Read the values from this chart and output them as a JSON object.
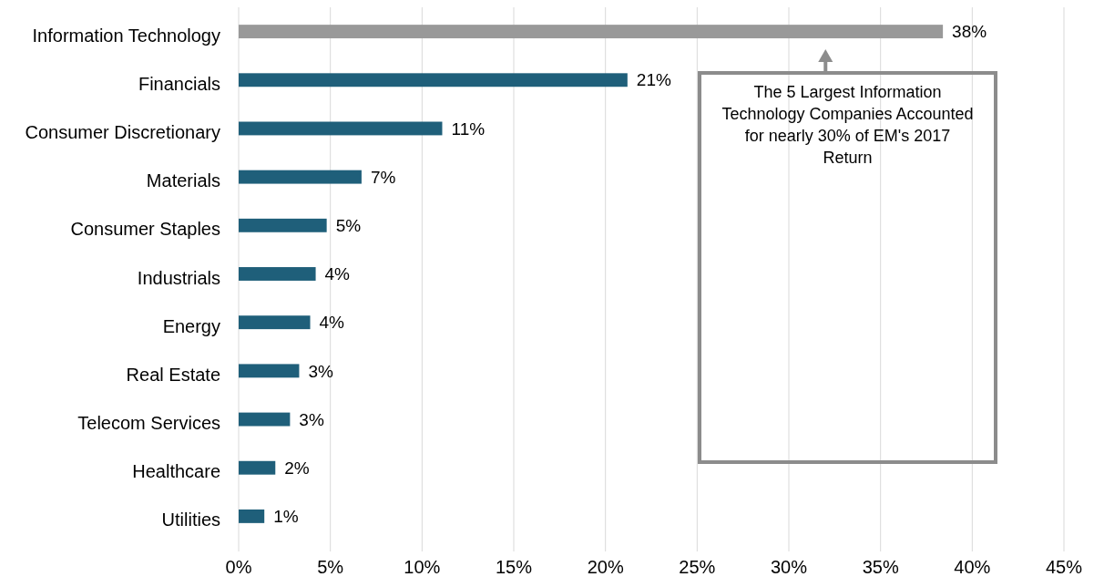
{
  "chart_data": {
    "type": "bar",
    "orientation": "horizontal",
    "categories": [
      "Information Technology",
      "Financials",
      "Consumer Discretionary",
      "Materials",
      "Consumer Staples",
      "Industrials",
      "Energy",
      "Real Estate",
      "Telecom Services",
      "Healthcare",
      "Utilities"
    ],
    "values": [
      38.4,
      21.2,
      11.1,
      6.7,
      4.8,
      4.2,
      3.9,
      3.3,
      2.8,
      2.0,
      1.4
    ],
    "colors": [
      "#999999",
      "#1f5f7a",
      "#1f5f7a",
      "#1f5f7a",
      "#1f5f7a",
      "#1f5f7a",
      "#1f5f7a",
      "#1f5f7a",
      "#1f5f7a",
      "#1f5f7a",
      "#1f5f7a"
    ],
    "value_labels": [
      "38%",
      "21%",
      "11%",
      "7%",
      "5%",
      "4%",
      "4%",
      "3%",
      "3%",
      "2%",
      "1%"
    ],
    "xlim": [
      0,
      45
    ],
    "xticks": [
      {
        "value": 0,
        "label": "0%"
      },
      {
        "value": 5,
        "label": "5%"
      },
      {
        "value": 10,
        "label": "10%"
      },
      {
        "value": 15,
        "label": "15%"
      },
      {
        "value": 20,
        "label": "20%"
      },
      {
        "value": 25,
        "label": "25%"
      },
      {
        "value": 30,
        "label": "30%"
      },
      {
        "value": 35,
        "label": "35%"
      },
      {
        "value": 40,
        "label": "40%"
      },
      {
        "value": 45,
        "label": "45%"
      }
    ],
    "grid": "x",
    "annotations": [
      {
        "text": "The 5 Largest Information Technology Companies Accounted for nearly 30% of EM's 2017 Return",
        "x": 32,
        "y": "Information Technology"
      }
    ]
  }
}
